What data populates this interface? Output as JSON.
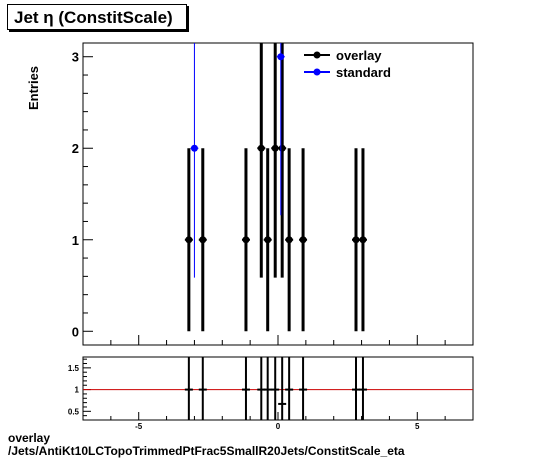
{
  "chart_data": [
    {
      "type": "scatter",
      "title": "Jet  η (ConstitScale)",
      "ylabel": "Entries",
      "xlim": [
        -7,
        7
      ],
      "ylim": [
        -0.15,
        3.15
      ],
      "y_ticks": [
        0,
        1,
        2,
        3
      ],
      "x_ticks": [
        -5,
        0,
        5
      ],
      "legend": {
        "placement": "top-right"
      },
      "series": [
        {
          "name": "overlay",
          "color": "#000000",
          "points": [
            {
              "x": -3.2,
              "y": 1
            },
            {
              "x": -2.7,
              "y": 1
            },
            {
              "x": -1.15,
              "y": 1
            },
            {
              "x": -0.6,
              "y": 2
            },
            {
              "x": -0.37,
              "y": 1
            },
            {
              "x": -0.1,
              "y": 2
            },
            {
              "x": 0.15,
              "y": 2
            },
            {
              "x": 0.4,
              "y": 1
            },
            {
              "x": 0.9,
              "y": 1
            },
            {
              "x": 2.8,
              "y": 1
            },
            {
              "x": 3.05,
              "y": 1
            }
          ]
        },
        {
          "name": "standard",
          "color": "#0000ff",
          "points": [
            {
              "x": -3.0,
              "y": 2
            },
            {
              "x": 0.1,
              "y": 3
            }
          ]
        }
      ]
    },
    {
      "type": "scatter",
      "xlim": [
        -7,
        7
      ],
      "ylim": [
        0.3,
        1.75
      ],
      "y_ticks": [
        0.5,
        1,
        1.5
      ],
      "y_tick_labels": [
        "0.5",
        "1",
        "1.5"
      ],
      "x_ticks": [
        -5,
        0,
        5
      ],
      "reference_line": {
        "y": 1,
        "color": "#cc0000"
      },
      "ratio_points": [
        {
          "x": -3.2,
          "y": 1
        },
        {
          "x": -2.7,
          "y": 1
        },
        {
          "x": -1.15,
          "y": 1
        },
        {
          "x": -0.6,
          "y": 1
        },
        {
          "x": -0.37,
          "y": 1
        },
        {
          "x": -0.1,
          "y": 1
        },
        {
          "x": 0.15,
          "y": 0.67
        },
        {
          "x": 0.4,
          "y": 1
        },
        {
          "x": 0.9,
          "y": 1
        },
        {
          "x": 2.8,
          "y": 1
        },
        {
          "x": 3.05,
          "y": 1
        }
      ]
    }
  ],
  "footer": {
    "line1": "overlay",
    "line2": "/Jets/AntiKt10LCTopoTrimmedPtFrac5SmallR20Jets/ConstitScale_eta"
  }
}
